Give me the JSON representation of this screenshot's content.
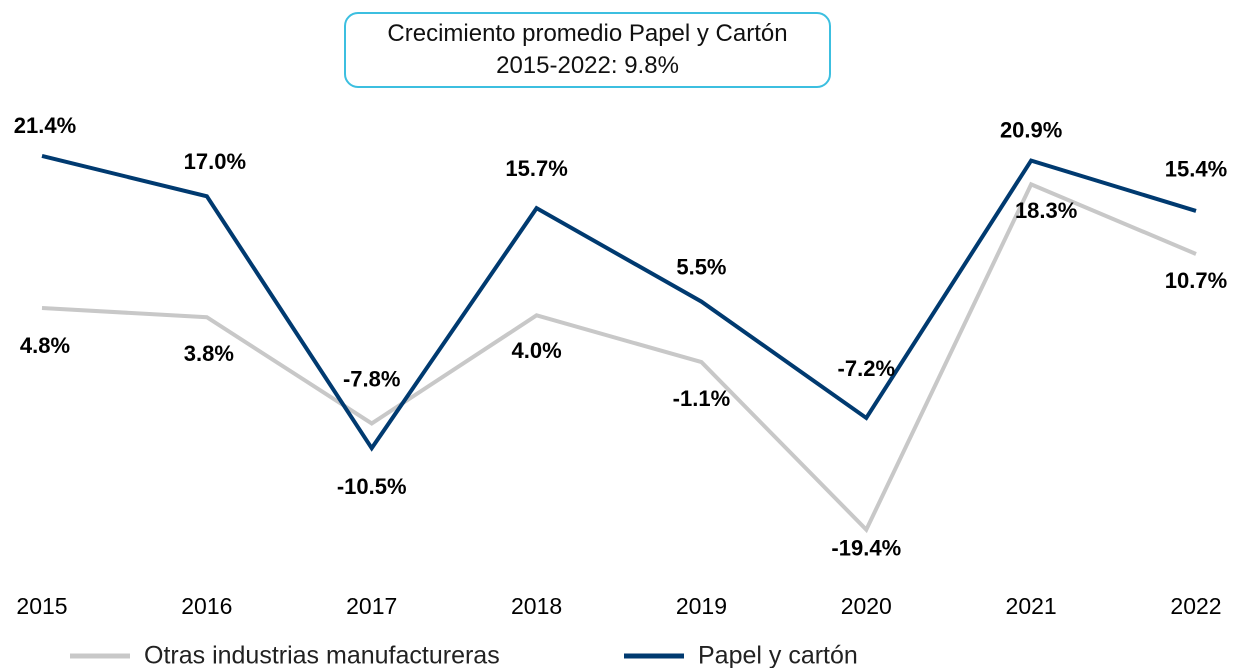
{
  "chart_data": {
    "type": "line",
    "title": "Crecimiento promedio Papel y Cartón 2015-2022: 9.8%",
    "categories": [
      "2015",
      "2016",
      "2017",
      "2018",
      "2019",
      "2020",
      "2021",
      "2022"
    ],
    "ylim": [
      -25,
      25
    ],
    "series": [
      {
        "name": "Otras industrias manufactureras",
        "color": "#c8c8c8",
        "values": [
          4.8,
          3.8,
          -7.8,
          4.0,
          -1.1,
          -19.4,
          18.3,
          10.7
        ],
        "value_labels": [
          "4.8%",
          "3.8%",
          "-7.8%",
          "4.0%",
          "-1.1%",
          "-19.4%",
          "18.3%",
          "10.7%"
        ]
      },
      {
        "name": "Papel y cartón",
        "color": "#003a70",
        "values": [
          21.4,
          17.0,
          -10.5,
          15.7,
          5.5,
          -7.2,
          20.9,
          15.4
        ],
        "value_labels": [
          "21.4%",
          "17.0%",
          "-10.5%",
          "15.7%",
          "5.5%",
          "-7.2%",
          "20.9%",
          "15.4%"
        ]
      }
    ]
  }
}
